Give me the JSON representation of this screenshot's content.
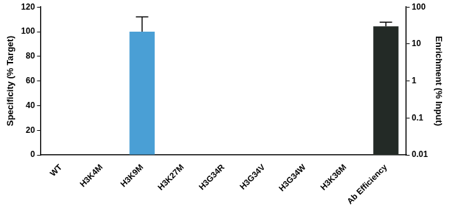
{
  "chart_data": {
    "type": "bar",
    "categories": [
      "WT",
      "H3K4M",
      "H3K9M",
      "H3K27M",
      "H3G34R",
      "H3G34V",
      "H3G34W",
      "H3K36M",
      "Ab Efficiency"
    ],
    "y_label": "Specificity (% Target)",
    "y2_label": "Enrichment (% Input)",
    "ylim": [
      0,
      120
    ],
    "yticks": [
      0,
      20,
      40,
      60,
      80,
      100,
      120
    ],
    "y2lim": [
      0.01,
      100
    ],
    "y2ticks": [
      0.01,
      0.1,
      1,
      10,
      100
    ],
    "log": "y2",
    "grid": false,
    "series": [
      {
        "color": "#4a9fd5",
        "values": [
          0,
          0,
          100,
          0,
          0,
          0,
          0,
          0,
          null
        ],
        "errors": [
          null,
          null,
          12,
          null,
          null,
          null,
          null,
          null,
          null
        ]
      },
      {
        "color": "#232a26",
        "axis": "y2",
        "values": [
          null,
          null,
          null,
          null,
          null,
          null,
          null,
          null,
          30
        ],
        "errors": [
          null,
          null,
          null,
          null,
          null,
          null,
          null,
          null,
          9
        ]
      }
    ]
  }
}
